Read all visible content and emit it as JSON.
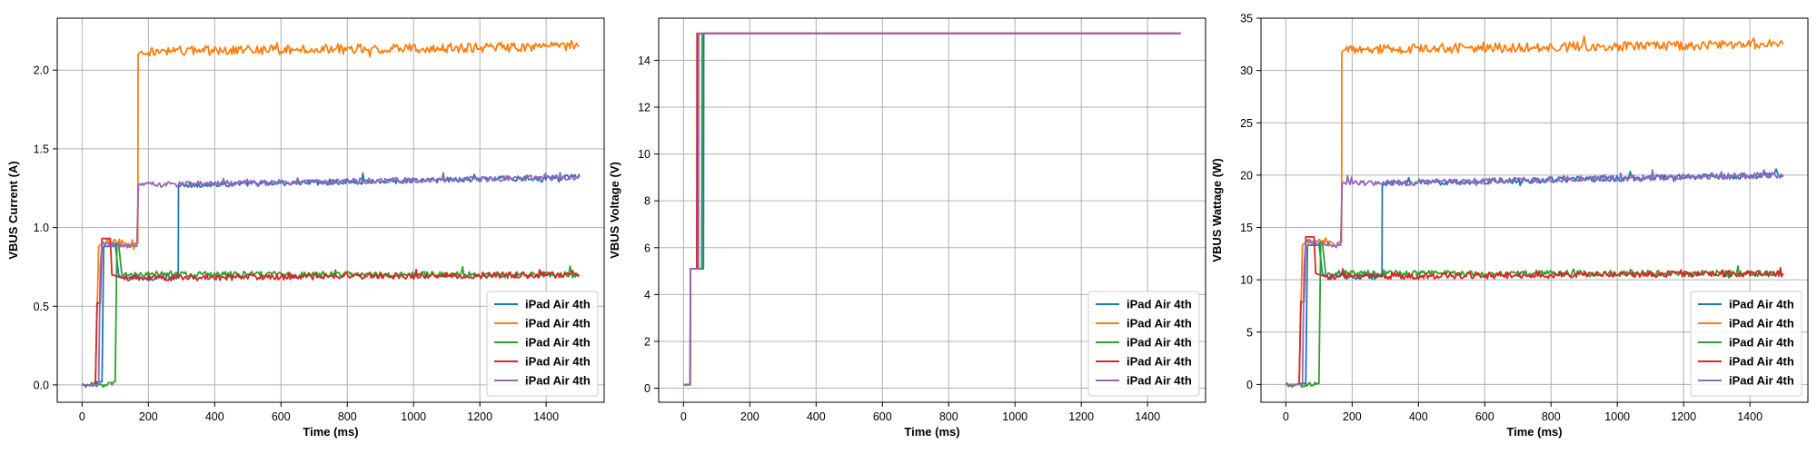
{
  "chart_data": [
    {
      "type": "line",
      "xlabel": "Time (ms)",
      "ylabel": "VBUS Current (A)",
      "xlim": [
        -75,
        1575
      ],
      "ylim": [
        -0.11,
        2.33
      ],
      "xticks": [
        0,
        200,
        400,
        600,
        800,
        1000,
        1200,
        1400
      ],
      "yticks": [
        0.0,
        0.5,
        1.0,
        1.5,
        2.0
      ],
      "ytick_labels": [
        "0.0",
        "0.5",
        "1.0",
        "1.5",
        "2.0"
      ],
      "grid": true,
      "legend_position": "lower-right",
      "series": [
        {
          "name": "iPad Air 4th",
          "color": "#1f77b4",
          "steady_noise": 0.018,
          "x": [
            0,
            40,
            45,
            60,
            65,
            95,
            100,
            110,
            120,
            290,
            291,
            1500
          ],
          "y": [
            0.0,
            0.0,
            0.02,
            0.02,
            0.88,
            0.88,
            0.9,
            0.7,
            0.68,
            0.68,
            1.27,
            1.32
          ]
        },
        {
          "name": "iPad Air 4th",
          "color": "#ff7f0e",
          "steady_noise": 0.03,
          "x": [
            0,
            40,
            50,
            60,
            160,
            168,
            169,
            180,
            1500
          ],
          "y": [
            0.0,
            0.0,
            0.88,
            0.9,
            0.9,
            0.9,
            2.1,
            2.12,
            2.15
          ]
        },
        {
          "name": "iPad Air 4th",
          "color": "#2ca02c",
          "steady_noise": 0.02,
          "x": [
            0,
            90,
            95,
            100,
            105,
            110,
            120,
            1500
          ],
          "y": [
            0.0,
            0.0,
            0.02,
            0.02,
            0.9,
            0.9,
            0.7,
            0.7
          ]
        },
        {
          "name": "iPad Air 4th",
          "color": "#d62728",
          "steady_noise": 0.02,
          "x": [
            0,
            40,
            45,
            55,
            60,
            85,
            90,
            120,
            1500
          ],
          "y": [
            0.0,
            0.0,
            0.52,
            0.52,
            0.93,
            0.93,
            0.7,
            0.68,
            0.7
          ]
        },
        {
          "name": "iPad Air 4th",
          "color": "#9467bd",
          "steady_noise": 0.018,
          "x": [
            0,
            50,
            55,
            60,
            160,
            165,
            170,
            1500
          ],
          "y": [
            0.0,
            0.0,
            0.75,
            0.9,
            0.88,
            0.88,
            1.27,
            1.32
          ]
        }
      ]
    },
    {
      "type": "line",
      "xlabel": "Time (ms)",
      "ylabel": "VBUS Voltage (V)",
      "xlim": [
        -75,
        1575
      ],
      "ylim": [
        -0.6,
        15.8
      ],
      "xticks": [
        0,
        200,
        400,
        600,
        800,
        1000,
        1200,
        1400
      ],
      "yticks": [
        0,
        2,
        4,
        6,
        8,
        10,
        12,
        14
      ],
      "ytick_labels": [
        "0",
        "2",
        "4",
        "6",
        "8",
        "10",
        "12",
        "14"
      ],
      "grid": true,
      "legend_position": "lower-right",
      "series": [
        {
          "name": "iPad Air 4th",
          "color": "#1f77b4",
          "steady_noise": 0,
          "x": [
            0,
            20,
            21,
            60,
            61,
            1500
          ],
          "y": [
            0.15,
            0.15,
            5.1,
            5.1,
            15.15,
            15.15
          ]
        },
        {
          "name": "iPad Air 4th",
          "color": "#ff7f0e",
          "steady_noise": 0,
          "x": [
            0,
            20,
            21,
            40,
            41,
            1500
          ],
          "y": [
            0.15,
            0.15,
            5.1,
            5.1,
            15.15,
            15.15
          ]
        },
        {
          "name": "iPad Air 4th",
          "color": "#2ca02c",
          "steady_noise": 0,
          "x": [
            0,
            20,
            21,
            55,
            56,
            1500
          ],
          "y": [
            0.15,
            0.15,
            5.1,
            5.1,
            15.15,
            15.15
          ]
        },
        {
          "name": "iPad Air 4th",
          "color": "#d62728",
          "steady_noise": 0,
          "x": [
            0,
            20,
            21,
            40,
            41,
            1500
          ],
          "y": [
            0.15,
            0.15,
            5.1,
            5.1,
            15.15,
            15.15
          ]
        },
        {
          "name": "iPad Air 4th",
          "color": "#9467bd",
          "steady_noise": 0,
          "x": [
            0,
            20,
            21,
            45,
            46,
            1500
          ],
          "y": [
            0.15,
            0.15,
            5.1,
            5.1,
            15.15,
            15.15
          ]
        }
      ]
    },
    {
      "type": "line",
      "xlabel": "Time (ms)",
      "ylabel": "VBUS Wattage (W)",
      "xlim": [
        -75,
        1575
      ],
      "ylim": [
        -1.7,
        35.0
      ],
      "xticks": [
        0,
        200,
        400,
        600,
        800,
        1000,
        1200,
        1400
      ],
      "yticks": [
        0,
        5,
        10,
        15,
        20,
        25,
        30,
        35
      ],
      "ytick_labels": [
        "0",
        "5",
        "10",
        "15",
        "20",
        "25",
        "30",
        "35"
      ],
      "grid": true,
      "legend_position": "lower-right",
      "series": [
        {
          "name": "iPad Air 4th",
          "color": "#1f77b4",
          "steady_noise": 0.28,
          "x": [
            0,
            40,
            45,
            60,
            65,
            95,
            100,
            110,
            120,
            290,
            291,
            1500
          ],
          "y": [
            0.0,
            0.0,
            0.1,
            0.1,
            13.3,
            13.3,
            13.5,
            10.6,
            10.3,
            10.3,
            19.2,
            20.0
          ]
        },
        {
          "name": "iPad Air 4th",
          "color": "#ff7f0e",
          "steady_noise": 0.45,
          "x": [
            0,
            40,
            50,
            60,
            160,
            168,
            169,
            180,
            1500
          ],
          "y": [
            0.0,
            0.0,
            13.3,
            13.6,
            13.6,
            13.6,
            31.8,
            32.0,
            32.5
          ]
        },
        {
          "name": "iPad Air 4th",
          "color": "#2ca02c",
          "steady_noise": 0.3,
          "x": [
            0,
            90,
            95,
            100,
            105,
            110,
            120,
            1500
          ],
          "y": [
            0.0,
            0.0,
            0.1,
            0.1,
            13.6,
            13.6,
            10.6,
            10.6
          ]
        },
        {
          "name": "iPad Air 4th",
          "color": "#d62728",
          "steady_noise": 0.3,
          "x": [
            0,
            40,
            45,
            55,
            60,
            85,
            90,
            120,
            1500
          ],
          "y": [
            0.0,
            0.0,
            7.9,
            7.9,
            14.1,
            14.1,
            10.6,
            10.3,
            10.6
          ]
        },
        {
          "name": "iPad Air 4th",
          "color": "#9467bd",
          "steady_noise": 0.28,
          "x": [
            0,
            50,
            55,
            60,
            160,
            165,
            170,
            1500
          ],
          "y": [
            0.0,
            0.0,
            11.3,
            13.6,
            13.3,
            13.3,
            19.2,
            20.0
          ]
        }
      ]
    }
  ]
}
